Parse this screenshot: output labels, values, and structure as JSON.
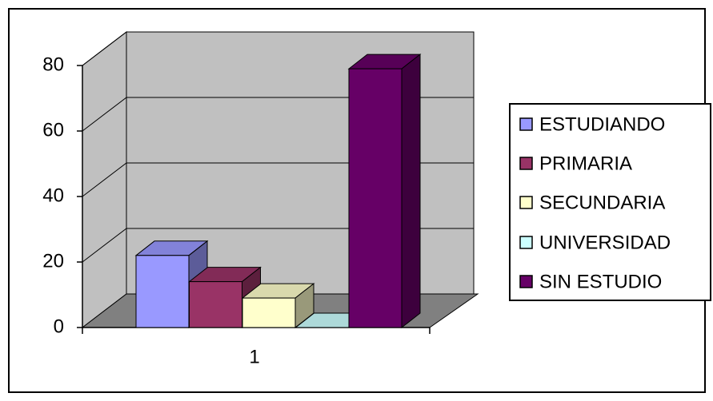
{
  "chart_data": {
    "type": "bar",
    "categories": [
      "1"
    ],
    "series": [
      {
        "name": "ESTUDIANDO",
        "values": [
          22
        ],
        "color": "#9999ff"
      },
      {
        "name": "PRIMARIA",
        "values": [
          14
        ],
        "color": "#993366"
      },
      {
        "name": "SECUNDARIA",
        "values": [
          9
        ],
        "color": "#ffffcc"
      },
      {
        "name": "UNIVERSIDAD",
        "values": [
          0
        ],
        "color": "#ccffff"
      },
      {
        "name": "SIN ESTUDIO",
        "values": [
          79
        ],
        "color": "#660066"
      }
    ],
    "yticks": [
      "0",
      "20",
      "40",
      "60",
      "80"
    ],
    "ylim": [
      0,
      80
    ],
    "grid": true,
    "style": "3d-column",
    "legend_position": "right",
    "colors": {
      "wall": "#c0c0c0",
      "floor": "#808080",
      "border": "#000000"
    }
  }
}
